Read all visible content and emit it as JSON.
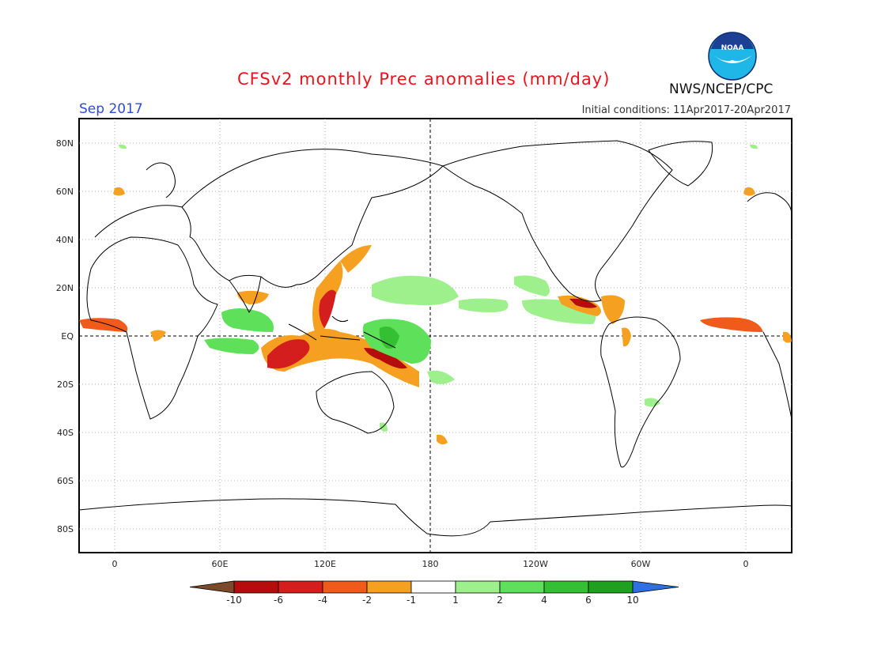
{
  "header": {
    "title": "CFSv2 monthly Prec anomalies (mm/day)",
    "month": "Sep 2017",
    "initial_conditions": "Initial conditions: 11Apr2017-20Apr2017",
    "agency": "NWS/NCEP/CPC",
    "logo_text": "NOAA"
  },
  "map": {
    "lat_labels": [
      "80N",
      "60N",
      "40N",
      "20N",
      "EQ",
      "20S",
      "40S",
      "60S",
      "80S"
    ],
    "lon_labels": [
      "0",
      "60E",
      "120E",
      "180",
      "120W",
      "60W",
      "0"
    ],
    "reference_lines": [
      "equator (dashed)",
      "dateline 180 (dashed)"
    ]
  },
  "colorbar": {
    "labels": [
      "-10",
      "-6",
      "-4",
      "-2",
      "-1",
      "1",
      "2",
      "4",
      "6",
      "10"
    ],
    "colors": [
      "#7a4a2a",
      "#b50d0d",
      "#d41e1e",
      "#f05a1a",
      "#f5a020",
      "#ffffff",
      "#9ef08c",
      "#5ee05a",
      "#34c032",
      "#1fa01f",
      "#2f6fe0"
    ]
  },
  "colors": {
    "title": "#e8141e",
    "month": "#2f49d8",
    "coast": "#000000",
    "grid": "#888888"
  }
}
